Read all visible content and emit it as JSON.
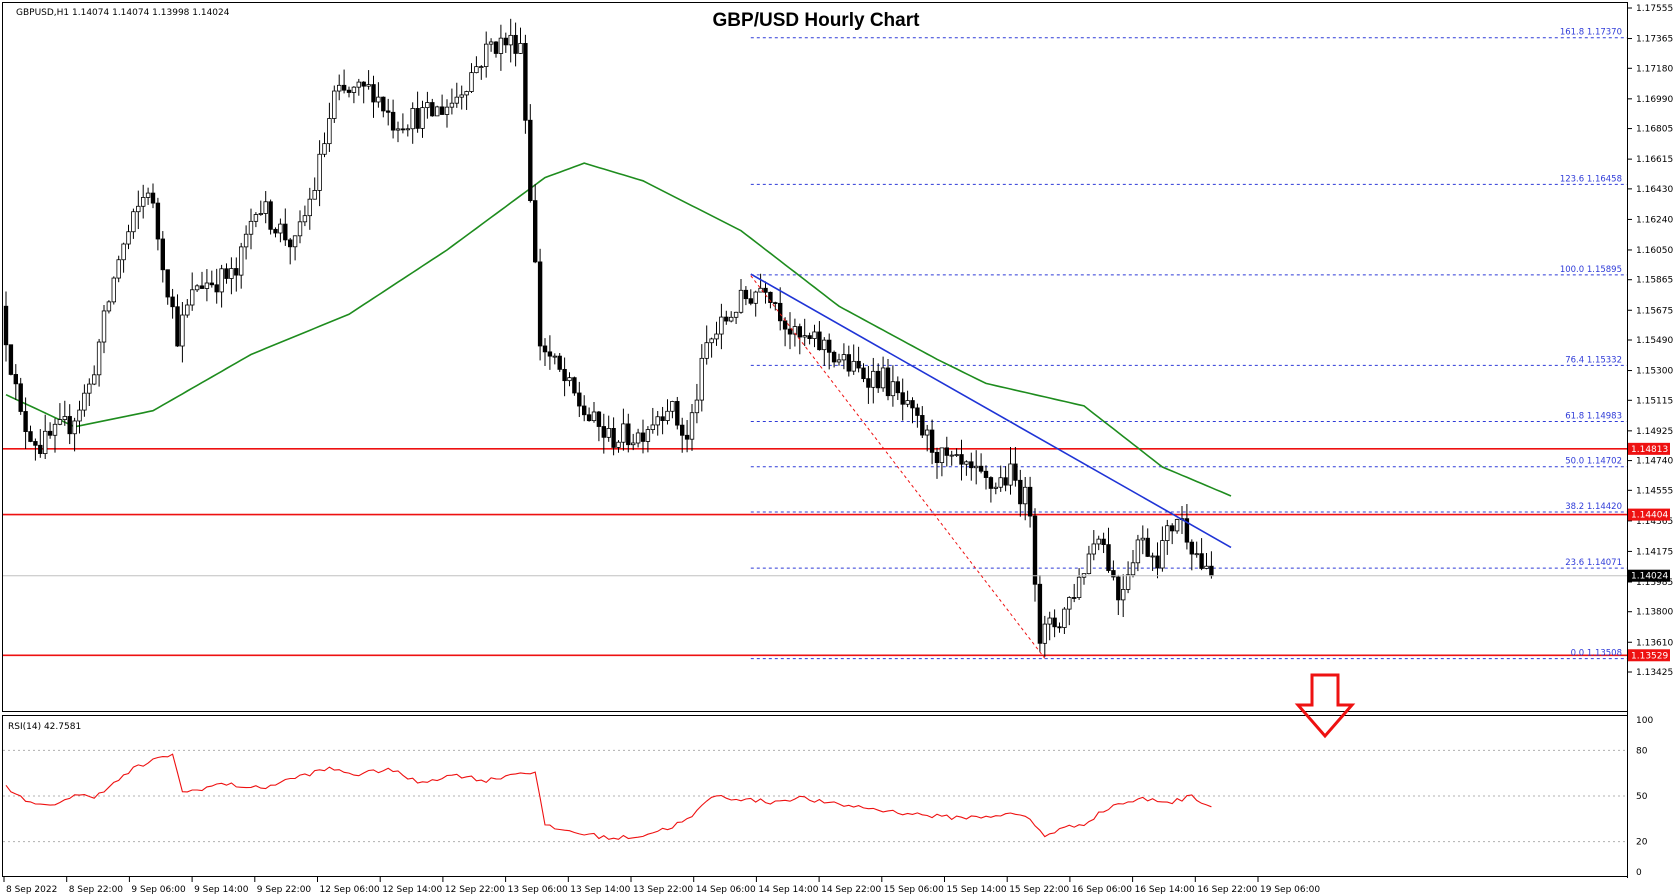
{
  "header": {
    "title": "GBP/USD Hourly Chart",
    "symbol_info": "GBPUSD,H1  1.14074 1.14074 1.13998 1.14024"
  },
  "colors": {
    "up_candle": "#ffffff",
    "down_candle": "#000000",
    "ma_line": "#1e8c1e",
    "trend_line": "#1f34d6",
    "support_resistance": "#ee1111",
    "fib_lines": "#2f3bd8",
    "rsi_line": "#ee1111",
    "arrow": "#ee1111"
  },
  "chart_data": [
    {
      "type": "candlestick",
      "symbol": "GBPUSD",
      "timeframe": "H1",
      "ylim": [
        1.1342,
        1.1758
      ],
      "y_ticks": [
        "1.13425",
        "1.13610",
        "1.13800",
        "1.13985",
        "1.14175",
        "1.14365",
        "1.14555",
        "1.14740",
        "1.14925",
        "1.15115",
        "1.15300",
        "1.15490",
        "1.15675",
        "1.15865",
        "1.16050",
        "1.16240",
        "1.16430",
        "1.16615",
        "1.16805",
        "1.16990",
        "1.17180",
        "1.17365",
        "1.17555"
      ],
      "x_ticks": [
        "8 Sep 2022",
        "8 Sep 22:00",
        "9 Sep 06:00",
        "9 Sep 14:00",
        "9 Sep 22:00",
        "12 Sep 06:00",
        "12 Sep 14:00",
        "12 Sep 22:00",
        "13 Sep 06:00",
        "13 Sep 14:00",
        "13 Sep 22:00",
        "14 Sep 06:00",
        "14 Sep 14:00",
        "14 Sep 22:00",
        "15 Sep 06:00",
        "15 Sep 14:00",
        "15 Sep 22:00",
        "16 Sep 06:00",
        "16 Sep 14:00",
        "16 Sep 22:00",
        "19 Sep 06:00"
      ],
      "waypoints": [
        [
          0,
          1.157
        ],
        [
          4,
          1.15
        ],
        [
          8,
          1.1483
        ],
        [
          14,
          1.1497
        ],
        [
          18,
          1.152
        ],
        [
          24,
          1.16
        ],
        [
          30,
          1.1645
        ],
        [
          36,
          1.1552
        ],
        [
          40,
          1.1584
        ],
        [
          48,
          1.1589
        ],
        [
          52,
          1.1635
        ],
        [
          60,
          1.1607
        ],
        [
          64,
          1.1645
        ],
        [
          68,
          1.17
        ],
        [
          76,
          1.1705
        ],
        [
          80,
          1.1685
        ],
        [
          88,
          1.169
        ],
        [
          92,
          1.1697
        ],
        [
          100,
          1.1733
        ],
        [
          106,
          1.1735
        ],
        [
          110,
          1.1548
        ],
        [
          116,
          1.1518
        ],
        [
          120,
          1.15
        ],
        [
          124,
          1.1488
        ],
        [
          130,
          1.149
        ],
        [
          136,
          1.151
        ],
        [
          140,
          1.1486
        ],
        [
          144,
          1.1545
        ],
        [
          150,
          1.157
        ],
        [
          156,
          1.1585
        ],
        [
          162,
          1.155
        ],
        [
          168,
          1.1545
        ],
        [
          174,
          1.153
        ],
        [
          180,
          1.1525
        ],
        [
          186,
          1.15
        ],
        [
          192,
          1.1475
        ],
        [
          198,
          1.1465
        ],
        [
          202,
          1.1458
        ],
        [
          206,
          1.1465
        ],
        [
          210,
          1.1445
        ],
        [
          212,
          1.1365
        ],
        [
          216,
          1.1375
        ],
        [
          220,
          1.14
        ],
        [
          224,
          1.1432
        ],
        [
          228,
          1.139
        ],
        [
          232,
          1.1425
        ],
        [
          236,
          1.1415
        ],
        [
          240,
          1.144
        ],
        [
          242,
          1.143
        ],
        [
          246,
          1.1402
        ]
      ],
      "current_price": "1.14024",
      "moving_average": [
        [
          0,
          1.1515
        ],
        [
          14,
          1.1495
        ],
        [
          30,
          1.1505
        ],
        [
          50,
          1.154
        ],
        [
          70,
          1.1565
        ],
        [
          90,
          1.1605
        ],
        [
          110,
          1.165
        ],
        [
          118,
          1.1659
        ],
        [
          130,
          1.1648
        ],
        [
          150,
          1.1617
        ],
        [
          170,
          1.157
        ],
        [
          190,
          1.1537
        ],
        [
          200,
          1.1522
        ],
        [
          220,
          1.1508
        ],
        [
          236,
          1.147
        ],
        [
          250,
          1.1452
        ]
      ],
      "trend_line": {
        "from": [
          152,
          1.159
        ],
        "to": [
          250,
          1.142
        ]
      },
      "fib_swing": {
        "from": [
          152,
          1.1589
        ],
        "to": [
          212,
          1.1351
        ]
      },
      "horizontal_levels": [
        {
          "price": 1.14813,
          "label": "1.14813"
        },
        {
          "price": 1.14404,
          "label": "1.14404"
        },
        {
          "price": 1.13529,
          "label": "1.13529"
        }
      ],
      "fib_levels": [
        {
          "price": 1.1737,
          "label": "161.8  1.17370"
        },
        {
          "price": 1.16458,
          "label": "123.6  1.16458"
        },
        {
          "price": 1.15895,
          "label": "100.0  1.15895"
        },
        {
          "price": 1.15332,
          "label": "76.4  1.15332"
        },
        {
          "price": 1.14983,
          "label": "61.8  1.14983"
        },
        {
          "price": 1.14702,
          "label": "50.0  1.14702"
        },
        {
          "price": 1.1442,
          "label": "38.2  1.14420"
        },
        {
          "price": 1.14071,
          "label": "23.6  1.14071"
        },
        {
          "price": 1.13508,
          "label": "0.0  1.13508"
        }
      ]
    },
    {
      "type": "line",
      "title": "RSI(14) 42.7581",
      "ylim": [
        0,
        100
      ],
      "y_ticks": [
        "100",
        "80",
        "50",
        "20",
        "0"
      ],
      "levels": [
        80,
        50,
        20
      ],
      "waypoints": [
        [
          0,
          57
        ],
        [
          4,
          46
        ],
        [
          8,
          43
        ],
        [
          14,
          50
        ],
        [
          18,
          50
        ],
        [
          22,
          58
        ],
        [
          26,
          68
        ],
        [
          30,
          73
        ],
        [
          34,
          78
        ],
        [
          36,
          52
        ],
        [
          44,
          58
        ],
        [
          52,
          55
        ],
        [
          60,
          63
        ],
        [
          66,
          68
        ],
        [
          72,
          64
        ],
        [
          78,
          68
        ],
        [
          84,
          59
        ],
        [
          92,
          64
        ],
        [
          98,
          60
        ],
        [
          104,
          65
        ],
        [
          108,
          66
        ],
        [
          110,
          30
        ],
        [
          118,
          25
        ],
        [
          124,
          22
        ],
        [
          130,
          24
        ],
        [
          136,
          30
        ],
        [
          140,
          36
        ],
        [
          144,
          50
        ],
        [
          150,
          48
        ],
        [
          156,
          46
        ],
        [
          162,
          49
        ],
        [
          168,
          45
        ],
        [
          174,
          43
        ],
        [
          180,
          40
        ],
        [
          186,
          38
        ],
        [
          192,
          36
        ],
        [
          198,
          36
        ],
        [
          204,
          38
        ],
        [
          208,
          37
        ],
        [
          212,
          24
        ],
        [
          215,
          28
        ],
        [
          220,
          32
        ],
        [
          226,
          44
        ],
        [
          232,
          48
        ],
        [
          238,
          46
        ],
        [
          242,
          50
        ],
        [
          246,
          43
        ]
      ]
    }
  ]
}
